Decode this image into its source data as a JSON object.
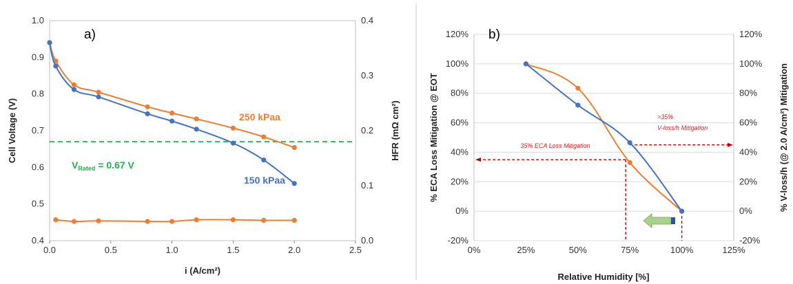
{
  "colors": {
    "orange": "#ED7D31",
    "blue": "#4472C4",
    "green_dash": "#22B14C",
    "red_dash": "#C00000",
    "arrow_fill": "#A9D18E",
    "arrow_tip": "#2F5597",
    "grid": "#d9d9d9"
  },
  "chart_data": [
    {
      "type": "line",
      "panel_label": "a)",
      "xlabel": "i (A/cm²)",
      "ylabel": "Cell Voltage (V)",
      "y2label": "HFR (mΩ cm²)",
      "xlim": [
        0,
        2.5
      ],
      "ylim": [
        0.4,
        1.0
      ],
      "y2lim": [
        0,
        0.4
      ],
      "xticks": [
        "0.0",
        "0.5",
        "1.0",
        "1.5",
        "2.0",
        "2.5"
      ],
      "yticks": [
        "0.4",
        "0.5",
        "0.6",
        "0.7",
        "0.8",
        "0.9",
        "1.0"
      ],
      "y2ticks": [
        "0.0",
        "0.1",
        "0.2",
        "0.3",
        "0.4"
      ],
      "grid": false,
      "series": [
        {
          "name": "250 kPaa",
          "color": "orange",
          "axis": "left",
          "x": [
            0,
            0.05,
            0.2,
            0.4,
            0.8,
            1.0,
            1.2,
            1.5,
            1.75,
            2.0
          ],
          "values": [
            0.94,
            0.89,
            0.825,
            0.805,
            0.765,
            0.748,
            0.732,
            0.707,
            0.683,
            0.654
          ]
        },
        {
          "name": "150 kPaa",
          "color": "blue",
          "axis": "left",
          "x": [
            0,
            0.05,
            0.2,
            0.4,
            0.8,
            1.0,
            1.2,
            1.5,
            1.75,
            2.0
          ],
          "values": [
            0.94,
            0.876,
            0.812,
            0.792,
            0.746,
            0.726,
            0.704,
            0.666,
            0.62,
            0.556
          ]
        },
        {
          "name": "",
          "color": "orange",
          "axis": "right",
          "x": [
            0.05,
            0.2,
            0.4,
            0.8,
            1.0,
            1.2,
            1.5,
            1.75,
            2.0
          ],
          "values": [
            0.038,
            0.035,
            0.036,
            0.035,
            0.035,
            0.038,
            0.038,
            0.037,
            0.037
          ]
        }
      ],
      "reference_line": {
        "y": 0.67,
        "label_main": "V",
        "label_sub": "Rated",
        "label_rest": " = 0.67 V"
      }
    },
    {
      "type": "line",
      "panel_label": "b)",
      "xlabel": "Relative Humidity [%]",
      "ylabel": "% ECA Loss Mitigation @ EOT",
      "y2label": "% V-loss/h (@ 2.0 A/cm²) Mitigation",
      "xlim": [
        0,
        125
      ],
      "ylim": [
        -20,
        120
      ],
      "y2lim": [
        -20,
        120
      ],
      "xticks": [
        "0%",
        "25%",
        "50%",
        "75%",
        "100%",
        "125%"
      ],
      "yticks": [
        "-20%",
        "0%",
        "20%",
        "40%",
        "60%",
        "80%",
        "100%",
        "120%"
      ],
      "y2ticks": [
        "-20%",
        "0%",
        "20%",
        "40%",
        "60%",
        "80%",
        "100%",
        "120%"
      ],
      "grid": true,
      "series": [
        {
          "name": "",
          "color": "orange",
          "axis": "left",
          "x": [
            25,
            50,
            75,
            100
          ],
          "values": [
            100,
            83.5,
            33,
            0
          ]
        },
        {
          "name": "",
          "color": "blue",
          "axis": "right",
          "x": [
            25,
            50,
            75,
            100
          ],
          "values": [
            100,
            72,
            46.5,
            0
          ]
        }
      ],
      "annotations": [
        {
          "text": "35% ECA Loss Mitigation",
          "x": 73,
          "y": 35,
          "axis": "left",
          "direction": "left"
        },
        {
          "text_line1": ">35%",
          "text_line2": "V-loss/h Mitigation",
          "x": 100,
          "y": 45,
          "axis": "right",
          "direction": "right"
        }
      ]
    }
  ]
}
